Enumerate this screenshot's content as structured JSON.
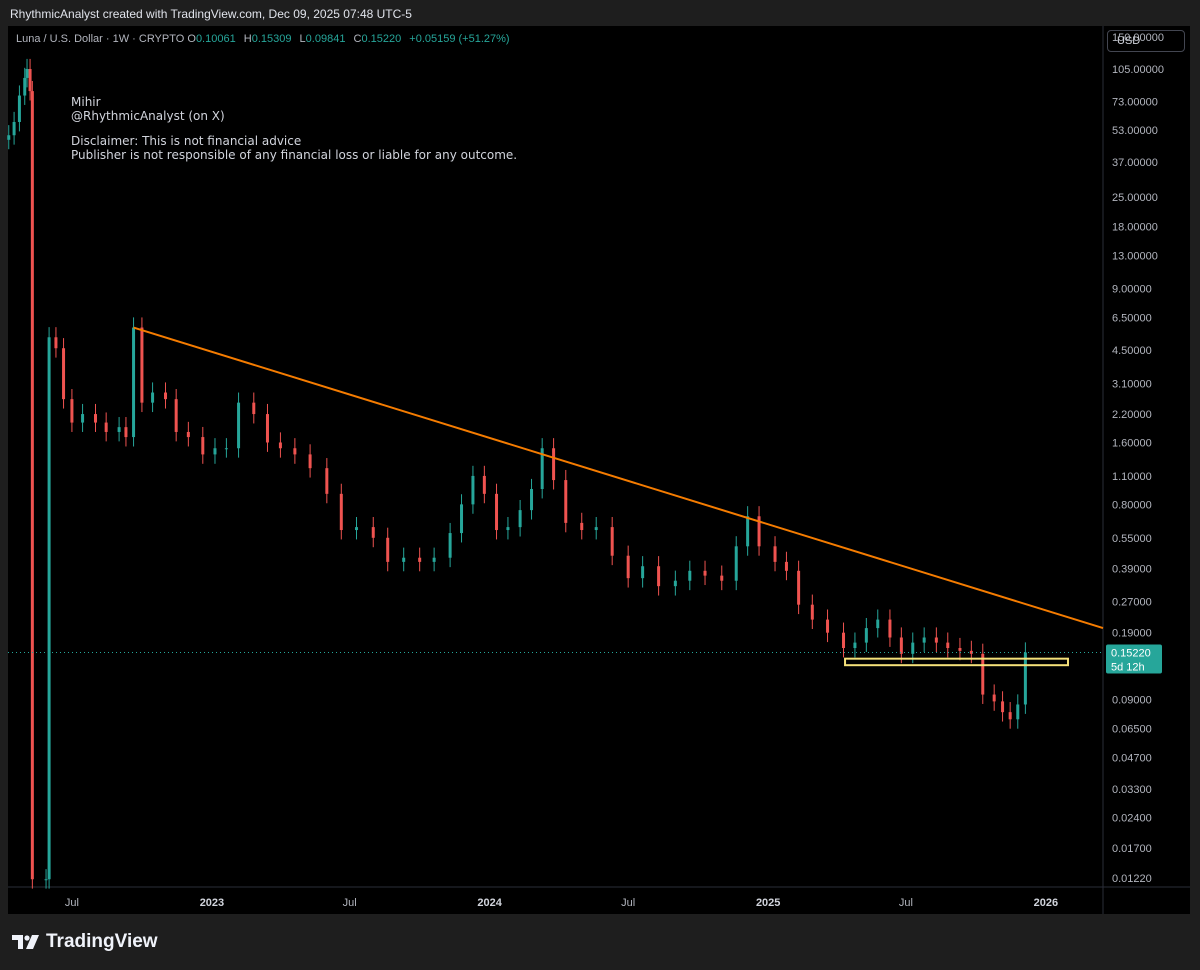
{
  "header": {
    "credit": "RhythmicAnalyst created with TradingView.com, Dec 09, 2025 07:48 UTC-5"
  },
  "symbol": {
    "name": "Luna / U.S. Dollar · 1W · CRYPTO",
    "o_label": "O",
    "o": "0.10061",
    "h_label": "H",
    "h": "0.15309",
    "l_label": "L",
    "l": "0.09841",
    "c_label": "C",
    "c": "0.15220",
    "change": "+0.05159 (+51.27%)"
  },
  "notes": {
    "line1": "Mihir",
    "line2": "@RhythmicAnalyst (on X)",
    "line3": "Disclaimer: This is not financial advice",
    "line4": "Publisher is not responsible of any financial loss or liable for any outcome."
  },
  "currency_button": "USD",
  "footer": {
    "brand": "TradingView"
  },
  "colors": {
    "up": "#26a69a",
    "down": "#ef5350",
    "trendline": "#f57c00",
    "zone": "#f5e17a",
    "price_label": "#26a69a",
    "background": "#000000"
  },
  "chart_data": {
    "type": "candlestick",
    "title": "Luna / U.S. Dollar · 1W · CRYPTO",
    "y_scale": "log",
    "ylim": [
      0.011,
      170
    ],
    "x_range": [
      "2022-04-08",
      "2026-03-17"
    ],
    "y_ticks": [
      "150.00000",
      "105.00000",
      "73.00000",
      "53.00000",
      "37.00000",
      "25.00000",
      "18.00000",
      "13.00000",
      "9.00000",
      "6.50000",
      "4.50000",
      "3.10000",
      "2.20000",
      "1.60000",
      "1.10000",
      "0.80000",
      "0.55000",
      "0.39000",
      "0.27000",
      "0.19000",
      "0.09000",
      "0.06500",
      "0.04700",
      "0.03300",
      "0.02400",
      "0.01700",
      "0.01220"
    ],
    "x_ticks": [
      {
        "date": "2022-07-01",
        "label": "Jul",
        "bold": false
      },
      {
        "date": "2023-01-01",
        "label": "2023",
        "bold": true
      },
      {
        "date": "2023-07-01",
        "label": "Jul",
        "bold": false
      },
      {
        "date": "2024-01-01",
        "label": "2024",
        "bold": true
      },
      {
        "date": "2024-07-01",
        "label": "Jul",
        "bold": false
      },
      {
        "date": "2025-01-01",
        "label": "2025",
        "bold": true
      },
      {
        "date": "2025-07-01",
        "label": "Jul",
        "bold": false
      },
      {
        "date": "2026-01-01",
        "label": "2026",
        "bold": true
      }
    ],
    "current_price": {
      "value": 0.1522,
      "label": "0.15220",
      "countdown": "5d 12h"
    },
    "trendline": [
      {
        "date": "2022-09-20",
        "value": 5.8
      },
      {
        "date": "2026-03-17",
        "value": 0.2
      }
    ],
    "support_zone": {
      "start": "2025-04-12",
      "end": "2026-01-30",
      "low": 0.132,
      "high": 0.142
    },
    "candles": [
      {
        "date": "2022-04-09",
        "value": 50
      },
      {
        "date": "2022-04-16",
        "value": 58
      },
      {
        "date": "2022-04-23",
        "value": 78
      },
      {
        "date": "2022-04-30",
        "value": 95
      },
      {
        "date": "2022-05-03",
        "value": 105
      },
      {
        "date": "2022-05-07",
        "value": 82
      },
      {
        "date": "2022-05-10",
        "value": 0.012
      },
      {
        "date": "2022-05-28",
        "value": 0.012
      },
      {
        "date": "2022-06-01",
        "value": 5.2
      },
      {
        "date": "2022-06-10",
        "value": 4.6
      },
      {
        "date": "2022-06-20",
        "value": 2.6
      },
      {
        "date": "2022-07-01",
        "value": 2.0
      },
      {
        "date": "2022-07-15",
        "value": 2.2
      },
      {
        "date": "2022-08-01",
        "value": 2.0
      },
      {
        "date": "2022-08-15",
        "value": 1.8
      },
      {
        "date": "2022-09-01",
        "value": 1.9
      },
      {
        "date": "2022-09-10",
        "value": 1.7
      },
      {
        "date": "2022-09-20",
        "value": 5.8
      },
      {
        "date": "2022-10-01",
        "value": 2.5
      },
      {
        "date": "2022-10-15",
        "value": 2.8
      },
      {
        "date": "2022-11-01",
        "value": 2.6
      },
      {
        "date": "2022-11-15",
        "value": 1.8
      },
      {
        "date": "2022-12-01",
        "value": 1.7
      },
      {
        "date": "2022-12-20",
        "value": 1.4
      },
      {
        "date": "2023-01-05",
        "value": 1.5
      },
      {
        "date": "2023-01-20",
        "value": 1.5
      },
      {
        "date": "2023-02-05",
        "value": 2.5
      },
      {
        "date": "2023-02-25",
        "value": 2.2
      },
      {
        "date": "2023-03-15",
        "value": 1.6
      },
      {
        "date": "2023-04-01",
        "value": 1.5
      },
      {
        "date": "2023-04-20",
        "value": 1.4
      },
      {
        "date": "2023-05-10",
        "value": 1.2
      },
      {
        "date": "2023-06-01",
        "value": 0.9
      },
      {
        "date": "2023-06-20",
        "value": 0.6
      },
      {
        "date": "2023-07-10",
        "value": 0.62
      },
      {
        "date": "2023-08-01",
        "value": 0.55
      },
      {
        "date": "2023-08-20",
        "value": 0.42
      },
      {
        "date": "2023-09-10",
        "value": 0.44
      },
      {
        "date": "2023-10-01",
        "value": 0.42
      },
      {
        "date": "2023-10-20",
        "value": 0.44
      },
      {
        "date": "2023-11-10",
        "value": 0.58
      },
      {
        "date": "2023-11-25",
        "value": 0.8
      },
      {
        "date": "2023-12-10",
        "value": 1.1
      },
      {
        "date": "2023-12-25",
        "value": 0.9
      },
      {
        "date": "2024-01-10",
        "value": 0.6
      },
      {
        "date": "2024-01-25",
        "value": 0.62
      },
      {
        "date": "2024-02-10",
        "value": 0.75
      },
      {
        "date": "2024-02-25",
        "value": 0.95
      },
      {
        "date": "2024-03-10",
        "value": 1.5
      },
      {
        "date": "2024-03-25",
        "value": 1.05
      },
      {
        "date": "2024-04-10",
        "value": 0.65
      },
      {
        "date": "2024-05-01",
        "value": 0.6
      },
      {
        "date": "2024-05-20",
        "value": 0.62
      },
      {
        "date": "2024-06-10",
        "value": 0.45
      },
      {
        "date": "2024-07-01",
        "value": 0.35
      },
      {
        "date": "2024-07-20",
        "value": 0.4
      },
      {
        "date": "2024-08-10",
        "value": 0.32
      },
      {
        "date": "2024-09-01",
        "value": 0.34
      },
      {
        "date": "2024-09-20",
        "value": 0.38
      },
      {
        "date": "2024-10-10",
        "value": 0.36
      },
      {
        "date": "2024-11-01",
        "value": 0.34
      },
      {
        "date": "2024-11-20",
        "value": 0.5
      },
      {
        "date": "2024-12-05",
        "value": 0.7
      },
      {
        "date": "2024-12-20",
        "value": 0.5
      },
      {
        "date": "2025-01-10",
        "value": 0.42
      },
      {
        "date": "2025-01-25",
        "value": 0.38
      },
      {
        "date": "2025-02-10",
        "value": 0.26
      },
      {
        "date": "2025-02-28",
        "value": 0.22
      },
      {
        "date": "2025-03-20",
        "value": 0.19
      },
      {
        "date": "2025-04-10",
        "value": 0.16
      },
      {
        "date": "2025-04-25",
        "value": 0.17
      },
      {
        "date": "2025-05-10",
        "value": 0.2
      },
      {
        "date": "2025-05-25",
        "value": 0.22
      },
      {
        "date": "2025-06-10",
        "value": 0.18
      },
      {
        "date": "2025-06-25",
        "value": 0.15
      },
      {
        "date": "2025-07-10",
        "value": 0.17
      },
      {
        "date": "2025-07-25",
        "value": 0.18
      },
      {
        "date": "2025-08-10",
        "value": 0.17
      },
      {
        "date": "2025-08-25",
        "value": 0.16
      },
      {
        "date": "2025-09-10",
        "value": 0.155
      },
      {
        "date": "2025-09-25",
        "value": 0.15
      },
      {
        "date": "2025-10-10",
        "value": 0.095
      },
      {
        "date": "2025-10-25",
        "value": 0.088
      },
      {
        "date": "2025-11-05",
        "value": 0.078
      },
      {
        "date": "2025-11-15",
        "value": 0.072
      },
      {
        "date": "2025-11-25",
        "value": 0.085
      },
      {
        "date": "2025-12-05",
        "value": 0.1522
      }
    ]
  }
}
